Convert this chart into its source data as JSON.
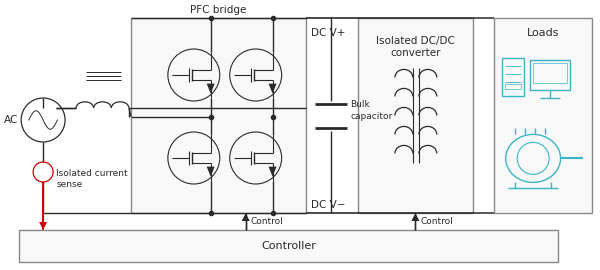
{
  "bg_color": "#ffffff",
  "line_color": "#2a2a2a",
  "red_color": "#cc0000",
  "cyan_color": "#3ab5c6",
  "gray_color": "#888888",
  "box_fill": "#f5f5f5",
  "box_edge": "#888888",
  "label_fontsize": 7.5,
  "small_fontsize": 6.5,
  "pfc_label": "PFC bridge",
  "dcdc_label": "Isolated DC/DC\nconverter",
  "loads_label": "Loads",
  "controller_label": "Controller",
  "dcvplus_label": "DC V+",
  "dcvminus_label": "DC V−",
  "bulk_label": "Bulk\ncapacitor",
  "control1_label": "Control",
  "control2_label": "Control",
  "ac_label": "AC",
  "sense_label": "Isolated current\nsense"
}
